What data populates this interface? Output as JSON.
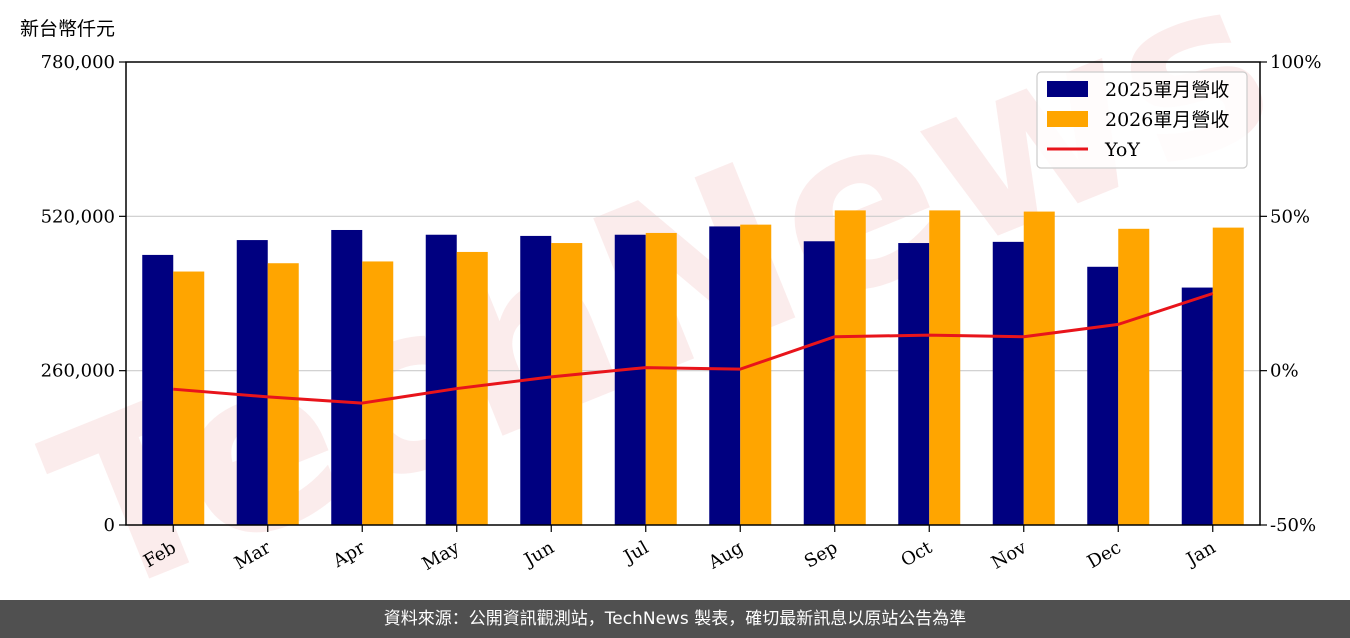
{
  "unit_label": "新台幣仟元",
  "footer_text": "資料來源：公開資訊觀測站，TechNews 製表，確切最新訊息以原站公告為準",
  "watermark_text": "TechNews",
  "colors": {
    "series_2025": "#000080",
    "series_2026": "#FFA500",
    "yoy": "#E8141B",
    "grid": "#cccccc"
  },
  "chart_data": {
    "type": "bar",
    "categories": [
      "Feb",
      "Mar",
      "Apr",
      "May",
      "Jun",
      "Jul",
      "Aug",
      "Sep",
      "Oct",
      "Nov",
      "Dec",
      "Jan"
    ],
    "series": [
      {
        "name": "2025單月營收",
        "values": [
          455000,
          480000,
          497000,
          489000,
          487000,
          489000,
          503000,
          478000,
          475000,
          477000,
          435000,
          400000
        ]
      },
      {
        "name": "2026單月營收",
        "values": [
          427000,
          441000,
          444000,
          460000,
          475000,
          492000,
          506000,
          530000,
          530000,
          528000,
          499000,
          501000
        ]
      }
    ],
    "line": {
      "name": "YoY",
      "values": [
        -6.0,
        -8.5,
        -10.5,
        -5.8,
        -2.0,
        1.0,
        0.5,
        11.0,
        11.5,
        11.0,
        15.0,
        25.0
      ]
    },
    "ylim": [
      0,
      780000
    ],
    "yticks": [
      "0",
      "260,000",
      "520,000",
      "780,000"
    ],
    "y2lim": [
      -50,
      100
    ],
    "y2ticks": [
      "-50%",
      "0%",
      "50%",
      "100%"
    ],
    "grid": true,
    "legend_position": "top-right"
  }
}
